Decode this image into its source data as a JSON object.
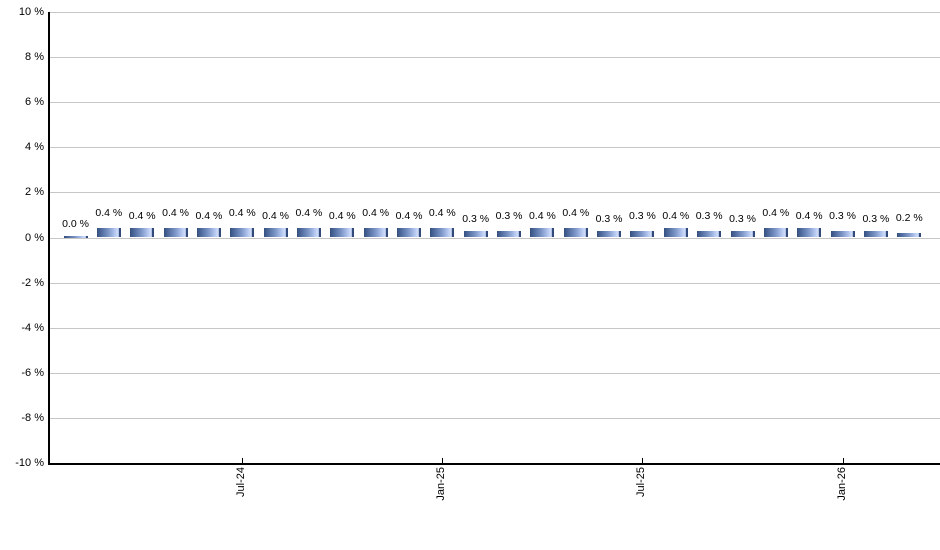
{
  "chart_data": {
    "type": "bar",
    "title": "",
    "unit": "%",
    "values": [
      0.0,
      0.4,
      0.4,
      0.4,
      0.4,
      0.4,
      0.4,
      0.4,
      0.4,
      0.4,
      0.4,
      0.4,
      0.3,
      0.3,
      0.4,
      0.4,
      0.3,
      0.3,
      0.4,
      0.3,
      0.3,
      0.4,
      0.4,
      0.3,
      0.3,
      0.2
    ],
    "bar_labels": [
      "0.0 %",
      "0.4 %",
      "0.4 %",
      "0.4 %",
      "0.4 %",
      "0.4 %",
      "0.4 %",
      "0.4 %",
      "0.4 %",
      "0.4 %",
      "0.4 %",
      "0.4 %",
      "0.3 %",
      "0.3 %",
      "0.4 %",
      "0.4 %",
      "0.3 %",
      "0.3 %",
      "0.4 %",
      "0.3 %",
      "0.3 %",
      "0.4 %",
      "0.4 %",
      "0.3 %",
      "0.3 %",
      "0.2 %"
    ],
    "y_axis": {
      "min": -10,
      "max": 10,
      "tick_step": 2,
      "tick_labels": [
        "10 %",
        "8 %",
        "6 %",
        "4 %",
        "2 %",
        "0 %",
        "-2 %",
        "-4 %",
        "-6 %",
        "-8 %",
        "-10 %"
      ]
    },
    "x_axis": {
      "ticks": [
        {
          "label": "Jul-24",
          "bar_index": 5
        },
        {
          "label": "Jan-25",
          "bar_index": 11
        },
        {
          "label": "Jul-25",
          "bar_index": 17
        },
        {
          "label": "Jan-26",
          "bar_index": 23
        }
      ]
    },
    "grid": "horizontal",
    "legend": "none",
    "colors": {
      "background": "#ffffff",
      "axis": "#000000",
      "gridline": "#c6c6c6",
      "text": "#000000",
      "bar_gradient": [
        "#34507f 0%",
        "#4f6a9d 18%",
        "#7e97c8 48%",
        "#aec2ec 72%",
        "#cbd9f8 84%",
        "#cbd9f8 90%",
        "#32497b 92%",
        "#32497b 100%"
      ]
    }
  }
}
